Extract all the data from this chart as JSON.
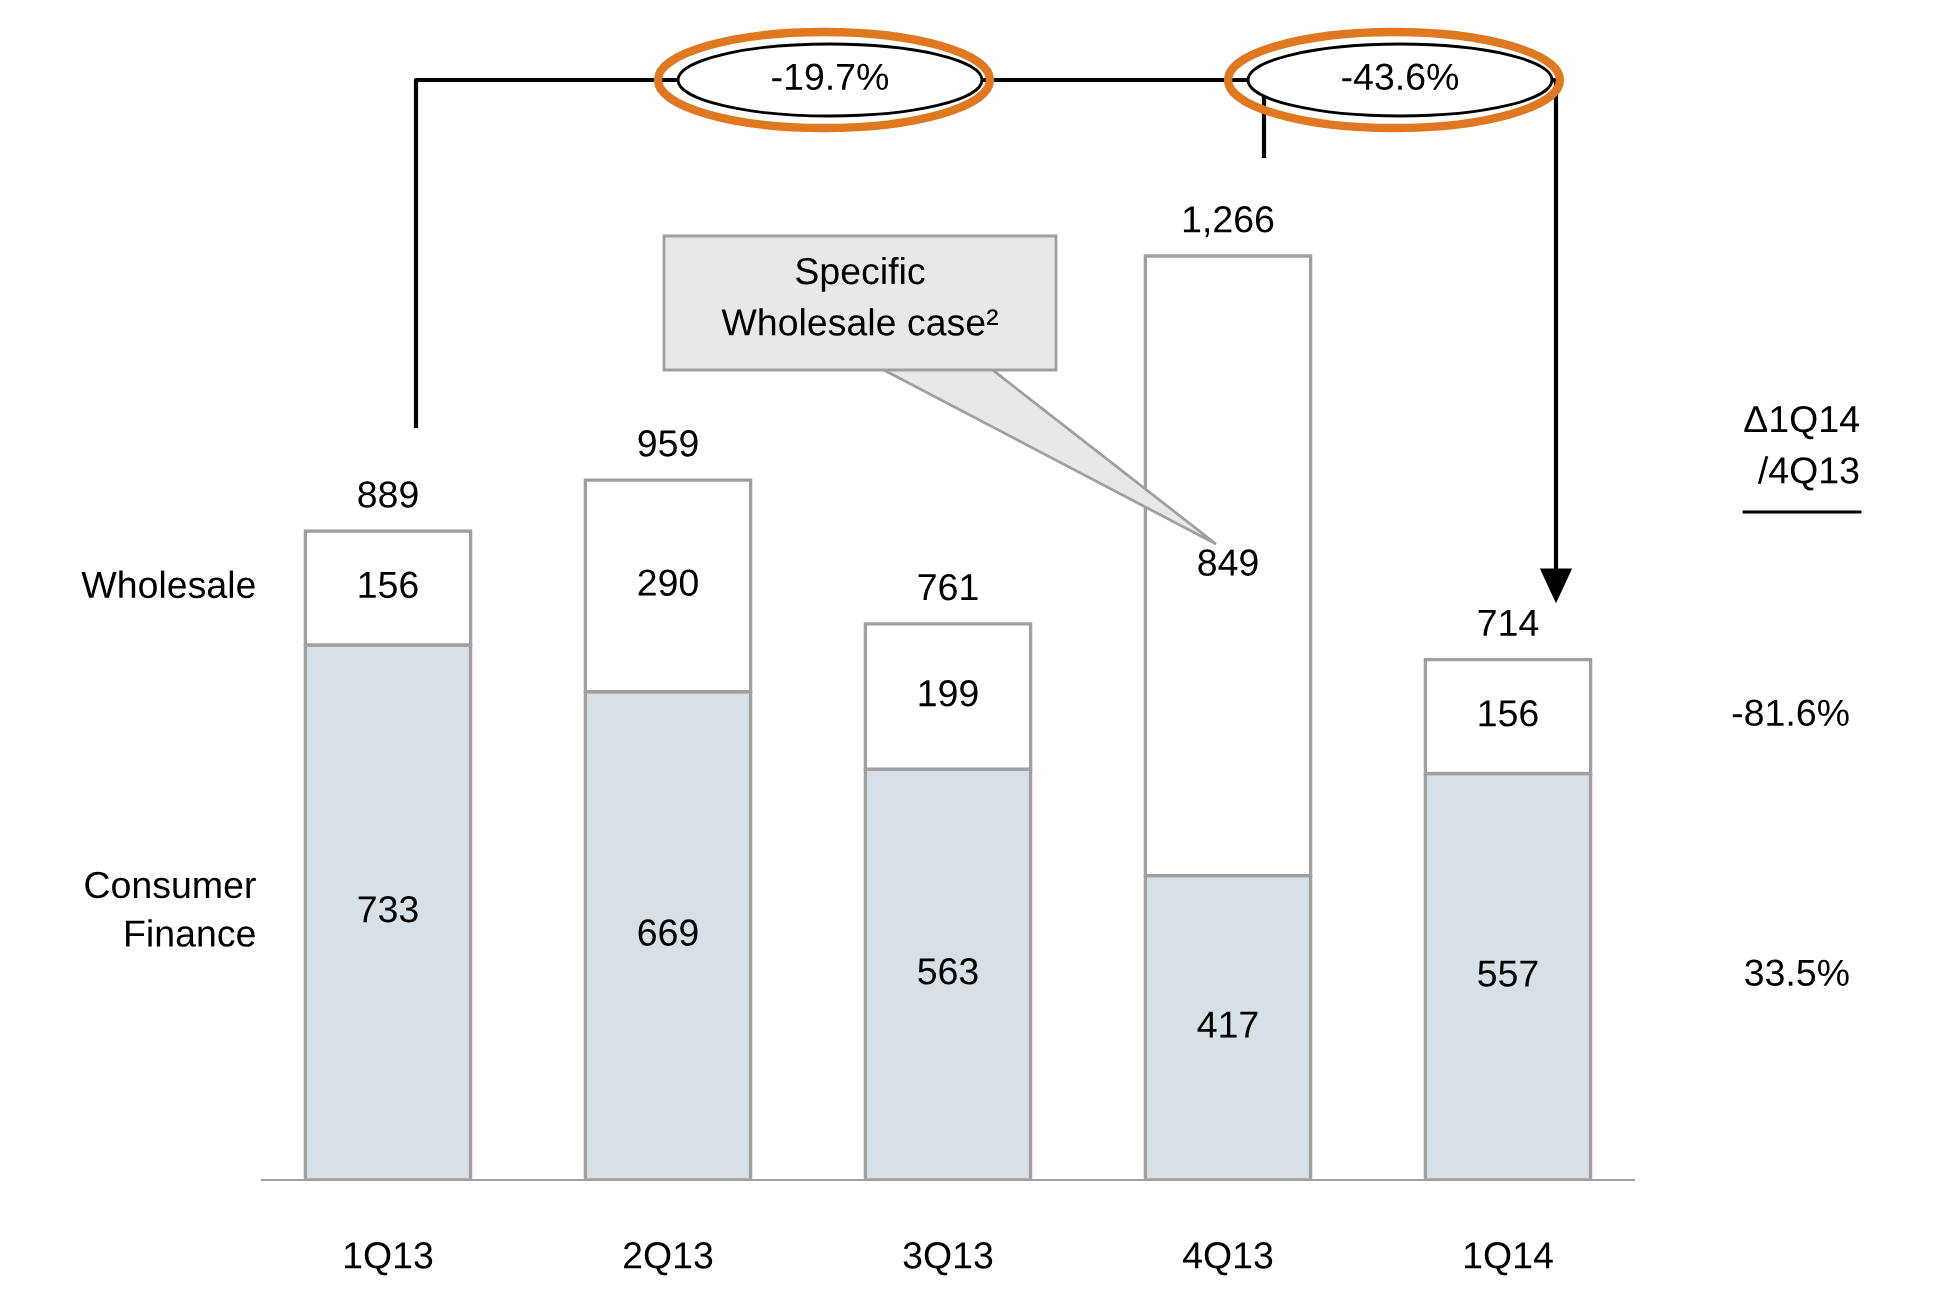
{
  "chart_data": {
    "type": "bar",
    "stacked": true,
    "categories": [
      "1Q13",
      "2Q13",
      "3Q13",
      "4Q13",
      "1Q14"
    ],
    "series": [
      {
        "name": "Consumer Finance",
        "color": "#d6e0e6",
        "values": [
          733,
          669,
          563,
          417,
          557
        ]
      },
      {
        "name": "Wholesale",
        "color": "#ffffff",
        "values": [
          156,
          290,
          199,
          849,
          156
        ]
      }
    ],
    "data_labels": true,
    "totals": [
      "889",
      "959",
      "761",
      "1,266",
      "714"
    ],
    "legend": false,
    "grid": false,
    "annotations": [
      "-19.7%",
      "-43.6%",
      "Specific\nWholesale case²",
      "Δ1Q14\n/4Q13",
      "-81.6%",
      "33.5%"
    ]
  }
}
